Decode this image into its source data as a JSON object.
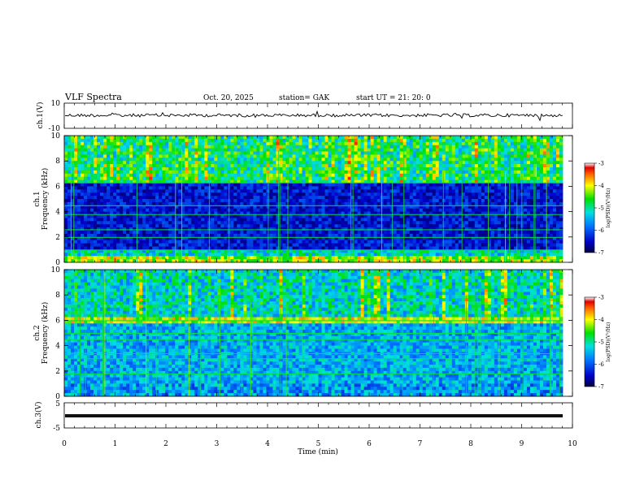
{
  "header": {
    "title": "VLF  Spectra",
    "date": "Oct. 20, 2025",
    "station": "station= GAK",
    "start": "start  UT  =    21: 20: 0"
  },
  "chart_data": [
    {
      "type": "line",
      "name": "ch1-waveform",
      "ylabel": "ch.1(V)",
      "ylim": [
        -10,
        10
      ],
      "yticks": [
        "10",
        "-10"
      ]
    },
    {
      "type": "heatmap",
      "name": "ch1-spectrogram",
      "ylabel_1": "ch.1",
      "ylabel_2": "Frequency  (kHz)",
      "ylim": [
        0,
        10
      ],
      "yticks": [
        "0",
        "2",
        "4",
        "6",
        "8",
        "10"
      ],
      "colorbar": {
        "label": "log(PSD)(V²/Hz)",
        "ticks": [
          "-3",
          "-4",
          "-5",
          "-6",
          "-7"
        ],
        "range": [
          -7,
          -3
        ]
      }
    },
    {
      "type": "heatmap",
      "name": "ch2-spectrogram",
      "ylabel_1": "ch.2",
      "ylabel_2": "Frequency  (kHz)",
      "ylim": [
        0,
        10
      ],
      "yticks": [
        "0",
        "2",
        "4",
        "6",
        "8",
        "10"
      ],
      "colorbar": {
        "label": "log(PSD)(V²/Hz)",
        "ticks": [
          "-3",
          "-4",
          "-5",
          "-6",
          "-7"
        ],
        "range": [
          -7,
          -3
        ]
      }
    },
    {
      "type": "line",
      "name": "ch3-waveform",
      "ylabel": "ch.3(V)",
      "ylim": [
        -5,
        5
      ],
      "yticks": [
        "5",
        "-5"
      ]
    }
  ],
  "xaxis": {
    "label": "Time  (min)",
    "xlim": [
      0,
      10
    ],
    "ticks": [
      "0",
      "1",
      "2",
      "3",
      "4",
      "5",
      "6",
      "7",
      "8",
      "9",
      "10"
    ]
  }
}
